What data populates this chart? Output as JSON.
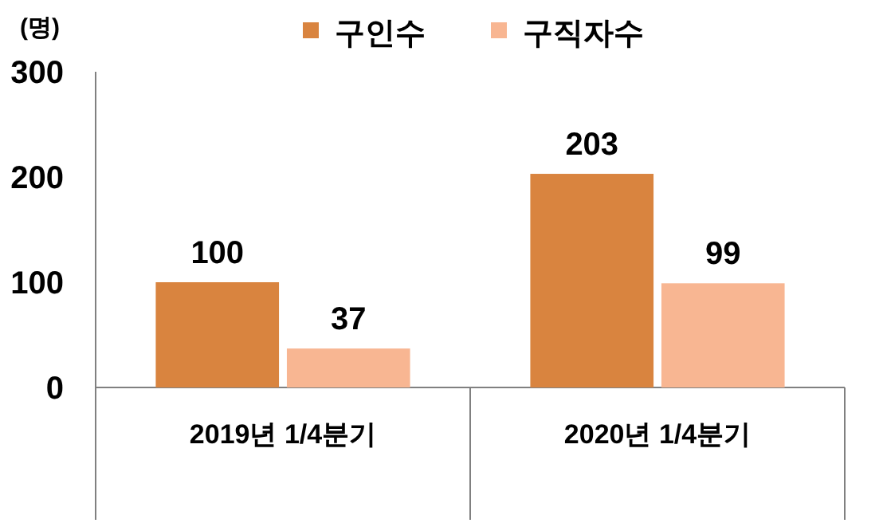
{
  "chart_data": {
    "type": "bar",
    "ylabel": "(명)",
    "categories": [
      "2019년 1/4분기",
      "2020년 1/4분기"
    ],
    "series": [
      {
        "name": "구인수",
        "color": "#d9843f",
        "values": [
          100,
          203
        ]
      },
      {
        "name": "구직자수",
        "color": "#f8b692",
        "values": [
          37,
          99
        ]
      }
    ],
    "ylim": [
      0,
      300
    ],
    "yticks": [
      0,
      100,
      200,
      300
    ],
    "data_labels": true,
    "legend": "top",
    "grid": false
  }
}
